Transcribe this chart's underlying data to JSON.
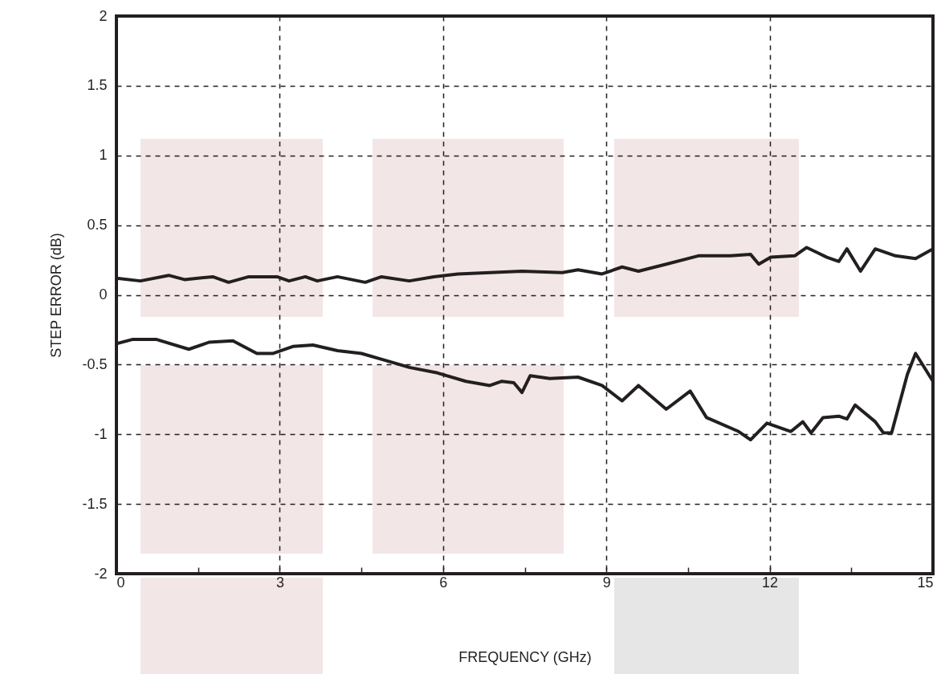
{
  "chart_data": {
    "type": "line",
    "xlabel": "FREQUENCY (GHz)",
    "ylabel": "STEP ERROR (dB)",
    "xlim": [
      0,
      15
    ],
    "ylim": [
      -2,
      2
    ],
    "xticks": [
      0,
      {
        "value": 1.5,
        "label": null
      },
      3,
      {
        "value": 4.5,
        "label": null
      },
      6,
      {
        "value": 7.5,
        "label": null
      },
      9,
      {
        "value": 10.5,
        "label": null
      },
      12,
      {
        "value": 13.5,
        "label": null
      },
      15
    ],
    "yticks": [
      -2,
      -1.5,
      -1,
      -0.5,
      0,
      0.5,
      1,
      1.5,
      2
    ],
    "grid": true,
    "series": [
      {
        "color": "#231f20",
        "x": [
          0,
          0.44,
          0.96,
          1.25,
          1.77,
          2.06,
          2.43,
          2.95,
          3.17,
          3.47,
          3.69,
          4.06,
          4.57,
          4.87,
          5.38,
          5.83,
          6.27,
          6.86,
          7.45,
          8.19,
          8.48,
          8.92,
          9.29,
          9.59,
          10.1,
          10.69,
          11.28,
          11.65,
          11.8,
          12.02,
          12.46,
          12.68,
          13.05,
          13.27,
          13.42,
          13.67,
          13.94,
          14.31,
          14.68,
          15
        ],
        "values": [
          0.12,
          0.1,
          0.14,
          0.11,
          0.13,
          0.09,
          0.13,
          0.13,
          0.1,
          0.13,
          0.1,
          0.13,
          0.09,
          0.13,
          0.1,
          0.13,
          0.15,
          0.16,
          0.17,
          0.16,
          0.18,
          0.15,
          0.2,
          0.17,
          0.22,
          0.28,
          0.28,
          0.29,
          0.22,
          0.27,
          0.28,
          0.34,
          0.27,
          0.24,
          0.33,
          0.17,
          0.33,
          0.28,
          0.26,
          0.33
        ]
      },
      {
        "color": "#231f20",
        "x": [
          0,
          0.29,
          0.74,
          1.33,
          1.7,
          2.14,
          2.58,
          2.88,
          3.24,
          3.61,
          4.06,
          4.5,
          4.94,
          5.38,
          5.9,
          6.42,
          6.86,
          7.08,
          7.3,
          7.45,
          7.6,
          7.96,
          8.48,
          8.92,
          9.29,
          9.59,
          10.1,
          10.54,
          10.84,
          11.43,
          11.65,
          11.95,
          12.39,
          12.61,
          12.76,
          12.98,
          13.27,
          13.42,
          13.57,
          13.94,
          14.09,
          14.24,
          14.53,
          14.68,
          15
        ],
        "values": [
          -0.35,
          -0.32,
          -0.32,
          -0.39,
          -0.34,
          -0.33,
          -0.42,
          -0.42,
          -0.37,
          -0.36,
          -0.4,
          -0.42,
          -0.47,
          -0.52,
          -0.56,
          -0.62,
          -0.65,
          -0.62,
          -0.63,
          -0.7,
          -0.58,
          -0.6,
          -0.59,
          -0.65,
          -0.76,
          -0.65,
          -0.82,
          -0.69,
          -0.88,
          -0.98,
          -1.04,
          -0.92,
          -0.98,
          -0.91,
          -0.99,
          -0.88,
          -0.87,
          -0.89,
          -0.79,
          -0.91,
          -0.99,
          -0.99,
          -0.57,
          -0.42,
          -0.62
        ]
      }
    ]
  }
}
